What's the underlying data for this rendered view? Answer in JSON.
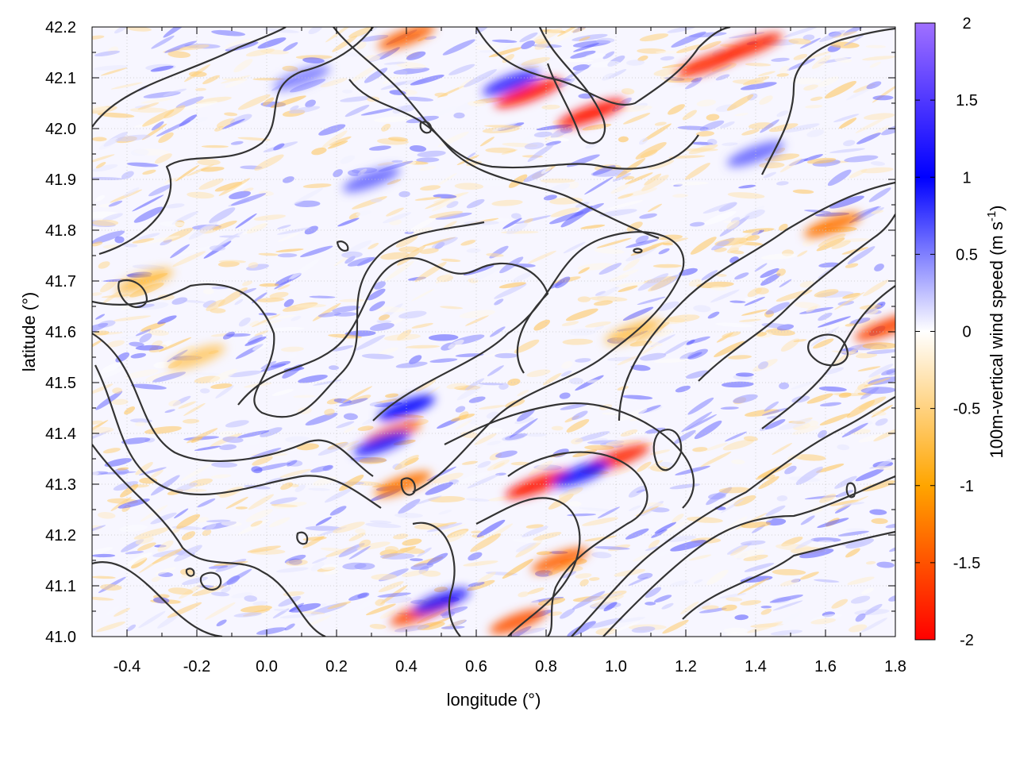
{
  "chart_data": {
    "type": "heatmap",
    "title": "",
    "xlabel": "longitude (°)",
    "ylabel": "latitude (°)",
    "colorbar_label": "100m-vertical wind speed (m s",
    "colorbar_label_sup": "-1",
    "colorbar_label_end": ")",
    "xlim": [
      -0.5,
      1.8
    ],
    "ylim": [
      41.0,
      42.2
    ],
    "x_ticks": [
      -0.4,
      -0.2,
      0.0,
      0.2,
      0.4,
      0.6,
      0.8,
      1.0,
      1.2,
      1.4,
      1.6,
      1.8
    ],
    "x_tick_labels": [
      "-0.4",
      "-0.2",
      "0.0",
      "0.2",
      "0.4",
      "0.6",
      "0.8",
      "1.0",
      "1.2",
      "1.4",
      "1.6",
      "1.8"
    ],
    "y_ticks": [
      41.0,
      41.1,
      41.2,
      41.3,
      41.4,
      41.5,
      41.6,
      41.7,
      41.8,
      41.9,
      42.0,
      42.1,
      42.2
    ],
    "y_tick_labels": [
      "41.0",
      "41.1",
      "41.2",
      "41.3",
      "41.4",
      "41.5",
      "41.6",
      "41.7",
      "41.8",
      "41.9",
      "42.0",
      "42.1",
      "42.2"
    ],
    "colorbar_range": [
      -2,
      2
    ],
    "colorbar_ticks": [
      -2,
      -1.5,
      -1,
      -0.5,
      0,
      0.5,
      1,
      1.5,
      2
    ],
    "colorbar_tick_labels": [
      "-2",
      "-1.5",
      "-1",
      "-0.5",
      "0",
      "0.5",
      "1",
      "1.5",
      "2"
    ],
    "colormap": [
      {
        "value": -2,
        "color": "#ff0000"
      },
      {
        "value": -1,
        "color": "#ffa500"
      },
      {
        "value": 0,
        "color": "#ffffff"
      },
      {
        "value": 1,
        "color": "#0000ff"
      },
      {
        "value": 2,
        "color": "#a070ff"
      }
    ],
    "grid": true,
    "contour_color": "#333333",
    "hotspots": [
      {
        "lon": 0.75,
        "lat": 42.07,
        "value": -1.9
      },
      {
        "lon": 0.93,
        "lat": 42.03,
        "value": -1.9
      },
      {
        "lon": 0.7,
        "lat": 42.09,
        "value": 1.3
      },
      {
        "lon": 1.27,
        "lat": 42.13,
        "value": -1.8
      },
      {
        "lon": 1.38,
        "lat": 42.16,
        "value": -1.8
      },
      {
        "lon": 0.4,
        "lat": 42.18,
        "value": -1.4
      },
      {
        "lon": 0.78,
        "lat": 41.3,
        "value": -1.9
      },
      {
        "lon": 1.0,
        "lat": 41.35,
        "value": -1.8
      },
      {
        "lon": 0.9,
        "lat": 41.32,
        "value": 1.1
      },
      {
        "lon": 0.36,
        "lat": 41.4,
        "value": -1.4
      },
      {
        "lon": 0.39,
        "lat": 41.3,
        "value": -1.3
      },
      {
        "lon": 0.33,
        "lat": 41.38,
        "value": 1.2
      },
      {
        "lon": 0.45,
        "lat": 41.05,
        "value": -1.6
      },
      {
        "lon": 0.72,
        "lat": 41.03,
        "value": -1.5
      },
      {
        "lon": 0.84,
        "lat": 41.15,
        "value": -1.4
      },
      {
        "lon": 1.62,
        "lat": 41.81,
        "value": -1.3
      },
      {
        "lon": 1.78,
        "lat": 41.61,
        "value": -1.6
      },
      {
        "lon": 1.05,
        "lat": 41.6,
        "value": -0.7
      },
      {
        "lon": -0.2,
        "lat": 41.55,
        "value": -0.6
      },
      {
        "lon": -0.35,
        "lat": 41.7,
        "value": -0.7
      },
      {
        "lon": 0.3,
        "lat": 41.9,
        "value": 0.6
      },
      {
        "lon": 0.1,
        "lat": 42.1,
        "value": 0.5
      },
      {
        "lon": 1.4,
        "lat": 41.95,
        "value": 0.6
      },
      {
        "lon": 0.4,
        "lat": 41.45,
        "value": 1.0
      },
      {
        "lon": 0.5,
        "lat": 41.07,
        "value": 1.2
      }
    ]
  }
}
